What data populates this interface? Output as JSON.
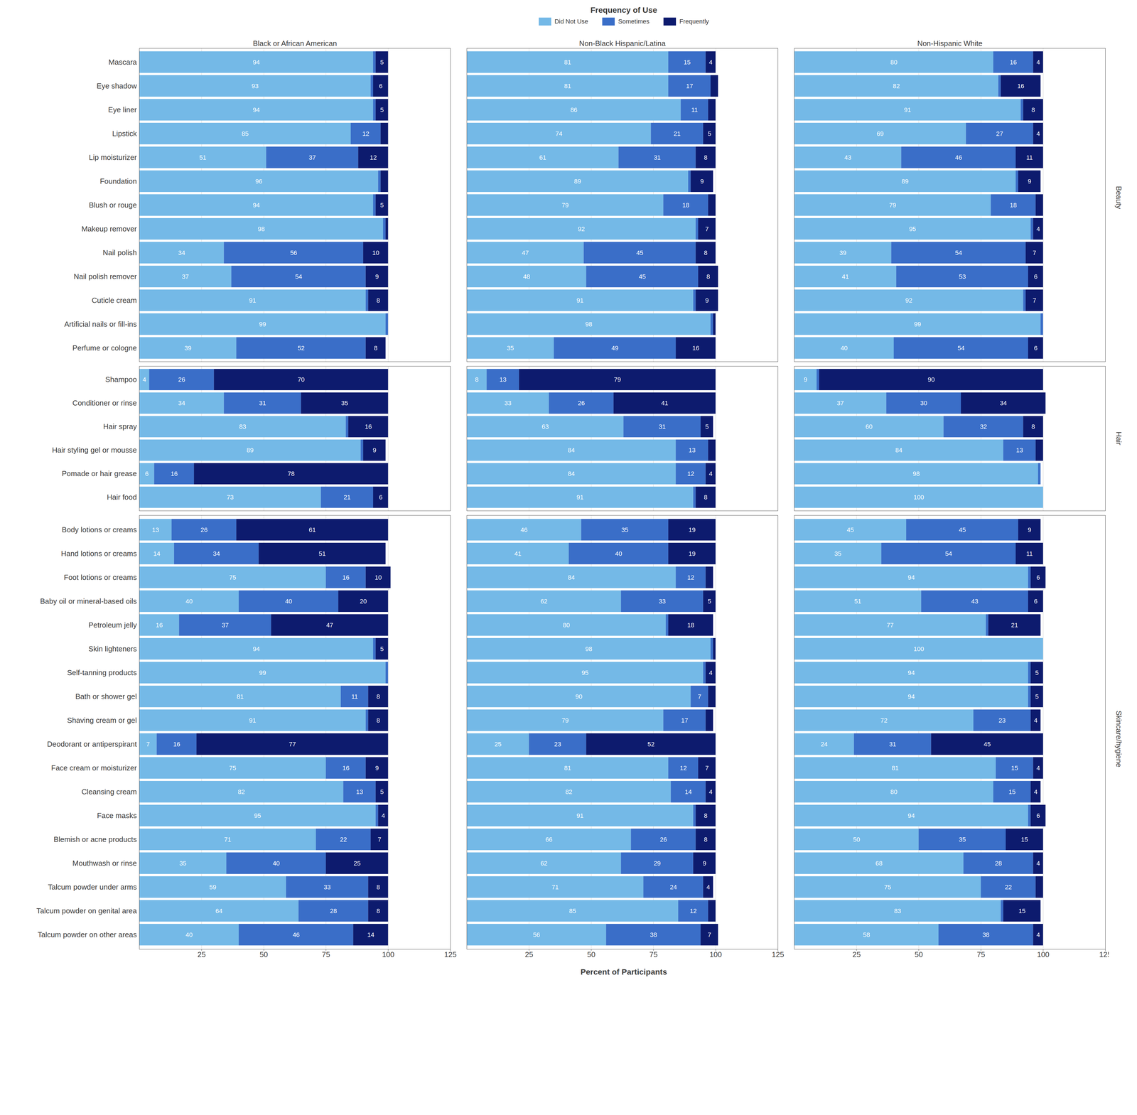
{
  "chart_data": {
    "type": "bar",
    "orientation": "horizontal",
    "stacked": true,
    "data_labels": true,
    "grid": true,
    "legend": "top",
    "legend_title": "Frequency of Use",
    "xlabel": "Percent of Participants",
    "xlim": [
      0,
      125
    ],
    "xticks": [
      25,
      50,
      75,
      100,
      125
    ],
    "columns": [
      "Black or African American",
      "Non-Black Hispanic/Latina",
      "Non-Hispanic White"
    ],
    "series": [
      {
        "name": "Did Not Use",
        "color": "#74b9e7"
      },
      {
        "name": "Sometimes",
        "color": "#3a6ec8"
      },
      {
        "name": "Frequently",
        "color": "#0d1b6e"
      }
    ],
    "rows": [
      {
        "label": "Beauty",
        "categories": [
          "Mascara",
          "Eye shadow",
          "Eye liner",
          "Lipstick",
          "Lip moisturizer",
          "Foundation",
          "Blush or rouge",
          "Makeup remover",
          "Nail polish",
          "Nail polish remover",
          "Cuticle cream",
          "Artificial nails or fill-ins",
          "Perfume or cologne"
        ]
      },
      {
        "label": "Hair",
        "categories": [
          "Shampoo",
          "Conditioner or rinse",
          "Hair spray",
          "Hair styling gel or mousse",
          "Pomade or hair grease",
          "Hair food"
        ]
      },
      {
        "label": "Skincare/hygiene",
        "categories": [
          "Body lotions or creams",
          "Hand lotions or creams",
          "Foot lotions or creams",
          "Baby oil or mineral-based oils",
          "Petroleum jelly",
          "Skin lighteners",
          "Self-tanning products",
          "Bath or shower gel",
          "Shaving cream or gel",
          "Deodorant or antiperspirant",
          "Face cream or moisturizer",
          "Cleansing cream",
          "Face masks",
          "Blemish or acne products",
          "Mouthwash or rinse",
          "Talcum powder under arms",
          "Talcum powder on genital area",
          "Talcum powder on other areas"
        ]
      }
    ],
    "panels": [
      {
        "column": "Black or African American",
        "row": "Beauty",
        "values": [
          [
            94,
            93,
            94,
            85,
            51,
            96,
            94,
            98,
            34,
            37,
            91,
            99,
            39
          ],
          [
            1,
            1,
            1,
            12,
            37,
            1,
            1,
            1,
            56,
            54,
            1,
            1,
            52
          ],
          [
            5,
            6,
            5,
            3,
            12,
            3,
            5,
            1,
            10,
            9,
            8,
            0,
            8
          ]
        ],
        "value_labels": [
          [
            "94",
            "93",
            "94",
            "85",
            "51",
            "96",
            "94",
            "98",
            "34",
            "37",
            "91",
            "99",
            "39"
          ],
          [
            null,
            null,
            null,
            "12",
            "37",
            null,
            null,
            null,
            "56",
            "54",
            null,
            null,
            "52"
          ],
          [
            "5",
            "6",
            "5",
            null,
            "12",
            null,
            "5",
            null,
            "10",
            "9",
            "8",
            null,
            "8"
          ]
        ]
      },
      {
        "column": "Non-Black Hispanic/Latina",
        "row": "Beauty",
        "values": [
          [
            81,
            81,
            86,
            74,
            61,
            89,
            79,
            92,
            47,
            48,
            91,
            98,
            35
          ],
          [
            15,
            17,
            11,
            21,
            31,
            1,
            18,
            1,
            45,
            45,
            1,
            1,
            49
          ],
          [
            4,
            3,
            3,
            5,
            8,
            9,
            3,
            7,
            8,
            8,
            9,
            1,
            16
          ]
        ],
        "value_labels": [
          [
            "81",
            "81",
            "86",
            "74",
            "61",
            "89",
            "79",
            "92",
            "47",
            "48",
            "91",
            "98",
            "35"
          ],
          [
            "15",
            "17",
            "11",
            "21",
            "31",
            null,
            "18",
            null,
            "45",
            "45",
            null,
            null,
            "49"
          ],
          [
            "4",
            null,
            null,
            "5",
            "8",
            "9",
            null,
            "7",
            "8",
            "8",
            "9",
            null,
            "16"
          ]
        ]
      },
      {
        "column": "Non-Hispanic White",
        "row": "Beauty",
        "values": [
          [
            80,
            82,
            91,
            69,
            43,
            89,
            79,
            95,
            39,
            41,
            92,
            99,
            40
          ],
          [
            16,
            1,
            1,
            27,
            46,
            1,
            18,
            1,
            54,
            53,
            1,
            1,
            54
          ],
          [
            4,
            16,
            8,
            4,
            11,
            9,
            3,
            4,
            7,
            6,
            7,
            0,
            6
          ]
        ],
        "value_labels": [
          [
            "80",
            "82",
            "91",
            "69",
            "43",
            "89",
            "79",
            "95",
            "39",
            "41",
            "92",
            "99",
            "40"
          ],
          [
            "16",
            null,
            null,
            "27",
            "46",
            null,
            "18",
            null,
            "54",
            "53",
            null,
            null,
            "54"
          ],
          [
            "4",
            "16",
            "8",
            "4",
            "11",
            "9",
            null,
            "4",
            "7",
            "6",
            "7",
            null,
            "6"
          ]
        ]
      },
      {
        "column": "Black or African American",
        "row": "Hair",
        "values": [
          [
            4,
            34,
            83,
            89,
            6,
            73
          ],
          [
            26,
            31,
            1,
            1,
            16,
            21
          ],
          [
            70,
            35,
            16,
            9,
            78,
            6
          ]
        ],
        "value_labels": [
          [
            "4",
            "34",
            "83",
            "89",
            "6",
            "73"
          ],
          [
            "26",
            "31",
            null,
            null,
            "16",
            "21"
          ],
          [
            "70",
            "35",
            "16",
            "9",
            "78",
            "6"
          ]
        ]
      },
      {
        "column": "Non-Black Hispanic/Latina",
        "row": "Hair",
        "values": [
          [
            8,
            33,
            63,
            84,
            84,
            91
          ],
          [
            13,
            26,
            31,
            13,
            12,
            1
          ],
          [
            79,
            41,
            5,
            3,
            4,
            8
          ]
        ],
        "value_labels": [
          [
            "8",
            "33",
            "63",
            "84",
            "84",
            "91"
          ],
          [
            "13",
            "26",
            "31",
            "13",
            "12",
            null
          ],
          [
            "79",
            "41",
            "5",
            null,
            "4",
            "8"
          ]
        ]
      },
      {
        "column": "Non-Hispanic White",
        "row": "Hair",
        "values": [
          [
            9,
            37,
            60,
            84,
            98,
            100
          ],
          [
            1,
            30,
            32,
            13,
            1,
            0
          ],
          [
            90,
            34,
            8,
            3,
            0,
            0
          ]
        ],
        "value_labels": [
          [
            "9",
            "37",
            "60",
            "84",
            "98",
            "100"
          ],
          [
            null,
            "30",
            "32",
            "13",
            null,
            null
          ],
          [
            "90",
            "34",
            "8",
            null,
            null,
            null
          ]
        ]
      },
      {
        "column": "Black or African American",
        "row": "Skincare/hygiene",
        "values": [
          [
            13,
            14,
            75,
            40,
            16,
            94,
            99,
            81,
            91,
            7,
            75,
            82,
            95,
            71,
            35,
            59,
            64,
            40
          ],
          [
            26,
            34,
            16,
            40,
            37,
            1,
            1,
            11,
            1,
            16,
            16,
            13,
            1,
            22,
            40,
            33,
            28,
            46
          ],
          [
            61,
            51,
            10,
            20,
            47,
            5,
            0,
            8,
            8,
            77,
            9,
            5,
            4,
            7,
            25,
            8,
            8,
            14
          ]
        ],
        "value_labels": [
          [
            "13",
            "14",
            "75",
            "40",
            "16",
            "94",
            "99",
            "81",
            "91",
            "7",
            "75",
            "82",
            "95",
            "71",
            "35",
            "59",
            "64",
            "40"
          ],
          [
            "26",
            "34",
            "16",
            "40",
            "37",
            null,
            null,
            "11",
            null,
            "16",
            "16",
            "13",
            null,
            "22",
            "40",
            "33",
            "28",
            "46"
          ],
          [
            "61",
            "51",
            "10",
            "20",
            "47",
            "5",
            null,
            "8",
            "8",
            "77",
            "9",
            "5",
            "4",
            "7",
            "25",
            "8",
            "8",
            "14"
          ]
        ]
      },
      {
        "column": "Non-Black Hispanic/Latina",
        "row": "Skincare/hygiene",
        "values": [
          [
            46,
            41,
            84,
            62,
            80,
            98,
            95,
            90,
            79,
            25,
            81,
            82,
            91,
            66,
            62,
            71,
            85,
            56
          ],
          [
            35,
            40,
            12,
            33,
            1,
            1,
            1,
            7,
            17,
            23,
            12,
            14,
            1,
            26,
            29,
            24,
            12,
            38
          ],
          [
            19,
            19,
            3,
            5,
            18,
            1,
            4,
            3,
            3,
            52,
            7,
            4,
            8,
            8,
            9,
            4,
            3,
            7
          ]
        ],
        "value_labels": [
          [
            "46",
            "41",
            "84",
            "62",
            "80",
            "98",
            "95",
            "90",
            "79",
            "25",
            "81",
            "82",
            "91",
            "66",
            "62",
            "71",
            "85",
            "56"
          ],
          [
            "35",
            "40",
            "12",
            "33",
            null,
            null,
            null,
            "7",
            "17",
            "23",
            "12",
            "14",
            null,
            "26",
            "29",
            "24",
            "12",
            "38"
          ],
          [
            "19",
            "19",
            null,
            "5",
            "18",
            null,
            "4",
            null,
            null,
            "52",
            "7",
            "4",
            "8",
            "8",
            "9",
            "4",
            null,
            "7"
          ]
        ]
      },
      {
        "column": "Non-Hispanic White",
        "row": "Skincare/hygiene",
        "values": [
          [
            45,
            35,
            94,
            51,
            77,
            100,
            94,
            94,
            72,
            24,
            81,
            80,
            94,
            50,
            68,
            75,
            83,
            58
          ],
          [
            45,
            54,
            1,
            43,
            1,
            0,
            1,
            1,
            23,
            31,
            15,
            15,
            1,
            35,
            28,
            22,
            1,
            38
          ],
          [
            9,
            11,
            6,
            6,
            21,
            0,
            5,
            5,
            4,
            45,
            4,
            4,
            6,
            15,
            4,
            3,
            15,
            4
          ]
        ],
        "value_labels": [
          [
            "45",
            "35",
            "94",
            "51",
            "77",
            "100",
            "94",
            "94",
            "72",
            "24",
            "81",
            "80",
            "94",
            "50",
            "68",
            "75",
            "83",
            "58"
          ],
          [
            "45",
            "54",
            null,
            "43",
            null,
            null,
            null,
            null,
            "23",
            "31",
            "15",
            "15",
            null,
            "35",
            "28",
            "22",
            null,
            "38"
          ],
          [
            "9",
            "11",
            "6",
            "6",
            "21",
            null,
            "5",
            "5",
            "4",
            "45",
            "4",
            "4",
            "6",
            "15",
            "4",
            null,
            "15",
            "4"
          ]
        ]
      }
    ]
  }
}
